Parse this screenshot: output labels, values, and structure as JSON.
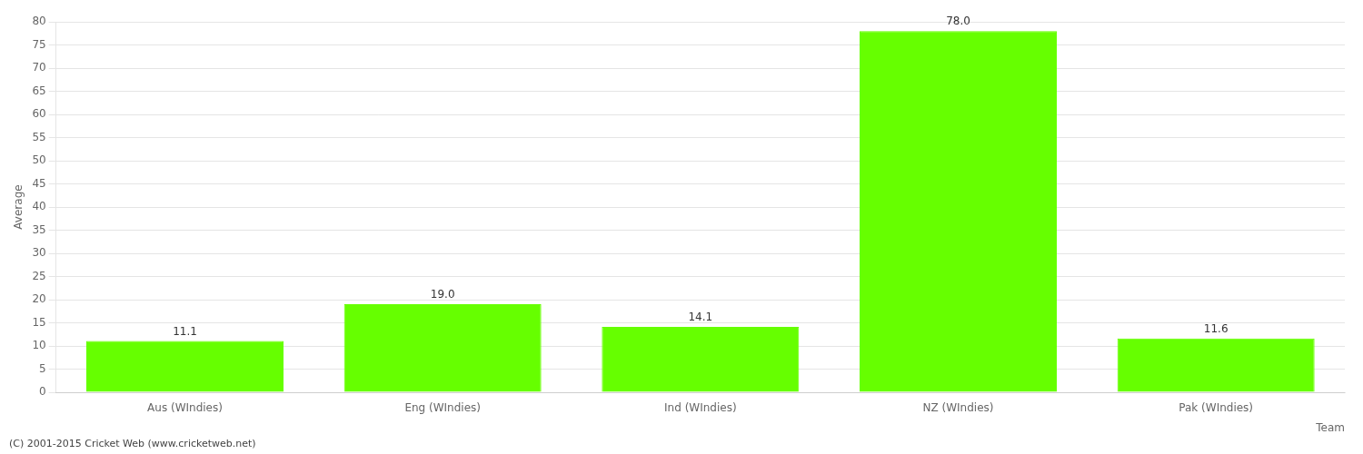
{
  "chart_data": {
    "type": "bar",
    "categories": [
      "Aus (WIndies)",
      "Eng (WIndies)",
      "Ind (WIndies)",
      "NZ (WIndies)",
      "Pak (WIndies)"
    ],
    "values": [
      11.1,
      19.0,
      14.1,
      78.0,
      11.6
    ],
    "value_labels": [
      "11.1",
      "19.0",
      "14.1",
      "78.0",
      "11.6"
    ],
    "data_labels": true,
    "color": "#66ff00",
    "xlabel": "Team",
    "ylabel": "Average",
    "annotations": [
      "(C) 2001-2015 Cricket Web (www.cricketweb.net)"
    ],
    "ylim": [
      0,
      80
    ],
    "yticks": [
      0,
      5,
      10,
      15,
      20,
      25,
      30,
      35,
      40,
      45,
      50,
      55,
      60,
      65,
      70,
      75,
      80
    ],
    "grid": true
  }
}
